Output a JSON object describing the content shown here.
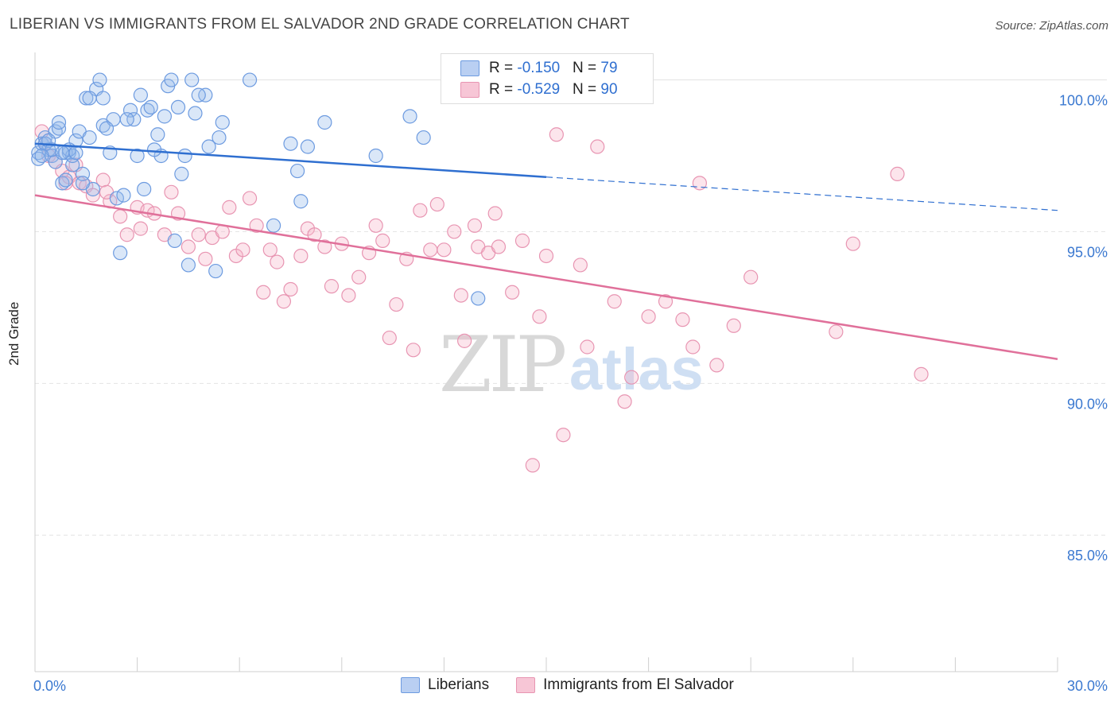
{
  "title": "LIBERIAN VS IMMIGRANTS FROM EL SALVADOR 2ND GRADE CORRELATION CHART",
  "source": "Source: ZipAtlas.com",
  "watermark": {
    "zip": "ZIP",
    "atlas": "atlas"
  },
  "colors": {
    "blue": "#2f6fd0",
    "pink": "#e0709a",
    "blue_fill": "#b9cff2",
    "pink_fill": "#f7c6d6"
  },
  "legend": {
    "rows": [
      {
        "r_label": "R = ",
        "r_value": "-0.150",
        "n_label": "N = ",
        "n_value": "79"
      },
      {
        "r_label": "R = ",
        "r_value": "-0.529",
        "n_label": "N = ",
        "n_value": "90"
      }
    ]
  },
  "bottom_legend": [
    "Liberians",
    "Immigrants from El Salvador"
  ],
  "chart_data": {
    "type": "scatter",
    "title": "LIBERIAN VS IMMIGRANTS FROM EL SALVADOR 2ND GRADE CORRELATION CHART",
    "xlabel": "",
    "ylabel": "2nd Grade",
    "xlim": [
      0,
      30
    ],
    "ylim": [
      80.5,
      100.8
    ],
    "x_tick_labels": [
      "0.0%",
      "30.0%"
    ],
    "y_ticks": [
      85,
      90,
      95,
      100
    ],
    "y_tick_labels": [
      "85.0%",
      "90.0%",
      "95.0%",
      "100.0%"
    ],
    "grid": true,
    "legend_position": "top-center",
    "series": [
      {
        "name": "Liberians",
        "color": "#2f6fd0",
        "trend": {
          "x": [
            0,
            15,
            30
          ],
          "y": [
            97.9,
            96.8,
            95.7
          ],
          "solid_until": 15
        },
        "points": [
          [
            0.1,
            97.6
          ],
          [
            0.2,
            97.9
          ],
          [
            0.3,
            98.1
          ],
          [
            0.4,
            97.7
          ],
          [
            0.5,
            97.5
          ],
          [
            0.6,
            98.3
          ],
          [
            0.7,
            98.4
          ],
          [
            0.8,
            96.6
          ],
          [
            0.9,
            96.7
          ],
          [
            1.0,
            97.6
          ],
          [
            1.1,
            97.2
          ],
          [
            1.2,
            98.0
          ],
          [
            1.3,
            98.3
          ],
          [
            1.4,
            96.9
          ],
          [
            1.5,
            99.4
          ],
          [
            1.6,
            98.1
          ],
          [
            1.7,
            96.4
          ],
          [
            1.8,
            99.7
          ],
          [
            1.9,
            100.0
          ],
          [
            2.0,
            98.5
          ],
          [
            2.2,
            97.6
          ],
          [
            2.3,
            98.7
          ],
          [
            2.4,
            96.1
          ],
          [
            2.5,
            94.3
          ],
          [
            2.6,
            96.2
          ],
          [
            2.8,
            99.0
          ],
          [
            2.9,
            98.7
          ],
          [
            3.0,
            97.5
          ],
          [
            3.1,
            99.5
          ],
          [
            3.2,
            96.4
          ],
          [
            3.3,
            99.0
          ],
          [
            3.6,
            98.2
          ],
          [
            3.7,
            97.5
          ],
          [
            3.8,
            98.8
          ],
          [
            3.9,
            99.8
          ],
          [
            4.0,
            100.0
          ],
          [
            4.1,
            94.7
          ],
          [
            4.2,
            99.1
          ],
          [
            4.3,
            96.9
          ],
          [
            4.4,
            97.5
          ],
          [
            4.5,
            93.9
          ],
          [
            4.6,
            100.0
          ],
          [
            4.7,
            98.9
          ],
          [
            5.0,
            99.5
          ],
          [
            5.1,
            97.8
          ],
          [
            5.3,
            93.7
          ],
          [
            5.4,
            98.1
          ],
          [
            5.5,
            98.6
          ],
          [
            6.3,
            100.0
          ],
          [
            7.0,
            95.2
          ],
          [
            7.5,
            97.9
          ],
          [
            7.7,
            97.0
          ],
          [
            7.8,
            96.0
          ],
          [
            8.0,
            97.8
          ],
          [
            8.5,
            98.6
          ],
          [
            10.0,
            97.5
          ],
          [
            11.0,
            98.8
          ],
          [
            11.4,
            98.1
          ],
          [
            13.0,
            92.8
          ],
          [
            0.1,
            97.4
          ],
          [
            0.3,
            97.9
          ],
          [
            0.6,
            97.3
          ],
          [
            0.9,
            97.6
          ],
          [
            1.1,
            97.5
          ],
          [
            1.6,
            99.4
          ],
          [
            2.1,
            98.4
          ],
          [
            3.4,
            99.1
          ],
          [
            2.7,
            98.7
          ],
          [
            4.8,
            99.5
          ],
          [
            0.4,
            98.0
          ],
          [
            0.5,
            97.7
          ],
          [
            1.0,
            97.7
          ],
          [
            1.4,
            96.6
          ],
          [
            0.2,
            97.5
          ],
          [
            0.7,
            98.6
          ],
          [
            1.2,
            97.6
          ],
          [
            0.8,
            97.6
          ],
          [
            2.0,
            99.4
          ],
          [
            3.5,
            97.7
          ]
        ]
      },
      {
        "name": "Immigrants from El Salvador",
        "color": "#e0709a",
        "trend": {
          "x": [
            0,
            30
          ],
          "y": [
            96.2,
            90.8
          ]
        },
        "points": [
          [
            0.2,
            98.3
          ],
          [
            0.4,
            97.5
          ],
          [
            0.6,
            97.3
          ],
          [
            0.8,
            97.0
          ],
          [
            1.0,
            96.8
          ],
          [
            1.3,
            96.6
          ],
          [
            1.5,
            96.5
          ],
          [
            1.7,
            96.2
          ],
          [
            2.0,
            96.7
          ],
          [
            2.2,
            96.0
          ],
          [
            2.5,
            95.5
          ],
          [
            2.7,
            94.9
          ],
          [
            3.0,
            95.8
          ],
          [
            3.3,
            95.7
          ],
          [
            3.5,
            95.6
          ],
          [
            3.8,
            94.9
          ],
          [
            4.0,
            96.3
          ],
          [
            4.2,
            95.6
          ],
          [
            4.5,
            94.5
          ],
          [
            4.8,
            94.9
          ],
          [
            5.0,
            94.1
          ],
          [
            5.2,
            94.8
          ],
          [
            5.5,
            95.0
          ],
          [
            5.7,
            95.8
          ],
          [
            5.9,
            94.2
          ],
          [
            6.1,
            94.4
          ],
          [
            6.3,
            96.1
          ],
          [
            6.5,
            95.2
          ],
          [
            6.7,
            93.0
          ],
          [
            6.9,
            94.4
          ],
          [
            7.1,
            94.0
          ],
          [
            7.3,
            92.7
          ],
          [
            7.5,
            93.1
          ],
          [
            7.8,
            94.2
          ],
          [
            8.0,
            95.1
          ],
          [
            8.2,
            94.9
          ],
          [
            8.5,
            94.5
          ],
          [
            8.7,
            93.2
          ],
          [
            9.0,
            94.6
          ],
          [
            9.2,
            92.9
          ],
          [
            9.5,
            93.5
          ],
          [
            9.8,
            94.3
          ],
          [
            10.0,
            95.2
          ],
          [
            10.2,
            94.7
          ],
          [
            10.4,
            91.5
          ],
          [
            10.6,
            92.6
          ],
          [
            10.9,
            94.1
          ],
          [
            11.1,
            91.1
          ],
          [
            11.3,
            95.7
          ],
          [
            11.6,
            94.4
          ],
          [
            11.8,
            95.9
          ],
          [
            12.0,
            94.4
          ],
          [
            12.3,
            95.0
          ],
          [
            12.5,
            92.9
          ],
          [
            12.9,
            95.2
          ],
          [
            13.0,
            94.5
          ],
          [
            13.3,
            94.3
          ],
          [
            13.5,
            95.6
          ],
          [
            13.6,
            94.5
          ],
          [
            14.0,
            93.0
          ],
          [
            14.3,
            94.7
          ],
          [
            14.8,
            92.2
          ],
          [
            15.0,
            94.2
          ],
          [
            15.3,
            98.2
          ],
          [
            15.5,
            88.3
          ],
          [
            16.0,
            93.9
          ],
          [
            16.2,
            91.2
          ],
          [
            17.0,
            92.7
          ],
          [
            17.3,
            89.4
          ],
          [
            17.5,
            90.2
          ],
          [
            18.0,
            92.2
          ],
          [
            18.5,
            92.7
          ],
          [
            19.0,
            92.1
          ],
          [
            19.3,
            91.2
          ],
          [
            19.5,
            96.6
          ],
          [
            20.0,
            90.6
          ],
          [
            20.5,
            91.9
          ],
          [
            21.0,
            93.5
          ],
          [
            23.5,
            91.7
          ],
          [
            24.0,
            94.6
          ],
          [
            25.3,
            96.9
          ],
          [
            26.0,
            90.3
          ],
          [
            14.6,
            87.3
          ],
          [
            16.5,
            97.8
          ],
          [
            3.1,
            95.1
          ],
          [
            2.1,
            96.3
          ],
          [
            1.2,
            97.2
          ],
          [
            0.9,
            96.6
          ],
          [
            0.3,
            97.9
          ],
          [
            12.6,
            91.4
          ]
        ]
      }
    ]
  }
}
